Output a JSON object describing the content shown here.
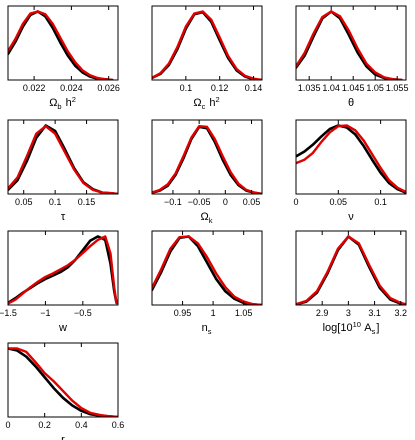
{
  "chart_data": [
    {
      "type": "line",
      "xlabel": "Ω_b h^2",
      "xlim": [
        0.0206,
        0.0265
      ],
      "ylim": [
        0,
        1.08
      ],
      "xticks": [
        "0.022",
        "0.024",
        "0.026"
      ],
      "series": [
        {
          "color": "#000000",
          "x": [
            0.0206,
            0.021,
            0.0214,
            0.0218,
            0.0222,
            0.0226,
            0.023,
            0.0234,
            0.0238,
            0.0242,
            0.0246,
            0.025,
            0.0254,
            0.0258,
            0.0262
          ],
          "y": [
            0.38,
            0.56,
            0.78,
            0.95,
            1.0,
            0.93,
            0.76,
            0.55,
            0.36,
            0.21,
            0.11,
            0.05,
            0.02,
            0.01,
            0.0
          ]
        },
        {
          "color": "#e00000",
          "x": [
            0.0206,
            0.021,
            0.0214,
            0.0218,
            0.0222,
            0.0226,
            0.023,
            0.0234,
            0.0238,
            0.0242,
            0.0246,
            0.025,
            0.0254,
            0.0258,
            0.0262
          ],
          "y": [
            0.42,
            0.6,
            0.82,
            0.97,
            1.0,
            0.96,
            0.82,
            0.62,
            0.42,
            0.26,
            0.14,
            0.07,
            0.03,
            0.01,
            0.0
          ]
        }
      ]
    },
    {
      "type": "line",
      "xlabel": "Ω_c h^2",
      "xlim": [
        0.08,
        0.145
      ],
      "ylim": [
        0,
        1.08
      ],
      "xticks": [
        "0.1",
        "0.12",
        "0.14"
      ],
      "series": [
        {
          "color": "#000000",
          "x": [
            0.08,
            0.085,
            0.09,
            0.095,
            0.1,
            0.105,
            0.11,
            0.115,
            0.12,
            0.125,
            0.13,
            0.135,
            0.14,
            0.145
          ],
          "y": [
            0.03,
            0.09,
            0.22,
            0.45,
            0.75,
            0.96,
            0.99,
            0.85,
            0.58,
            0.32,
            0.14,
            0.05,
            0.01,
            0.0
          ]
        },
        {
          "color": "#e00000",
          "x": [
            0.08,
            0.085,
            0.09,
            0.095,
            0.1,
            0.105,
            0.11,
            0.115,
            0.12,
            0.125,
            0.13,
            0.135,
            0.14,
            0.145
          ],
          "y": [
            0.03,
            0.1,
            0.24,
            0.48,
            0.78,
            0.97,
            1.0,
            0.88,
            0.62,
            0.35,
            0.16,
            0.06,
            0.02,
            0.0
          ]
        }
      ]
    },
    {
      "type": "line",
      "xlabel": "θ",
      "xlim": [
        1.032,
        1.057
      ],
      "ylim": [
        0,
        1.08
      ],
      "xticks": [
        "1.035",
        "1.04",
        "1.045",
        "1.05",
        "1.055"
      ],
      "series": [
        {
          "color": "#000000",
          "x": [
            1.032,
            1.034,
            1.036,
            1.038,
            1.04,
            1.042,
            1.044,
            1.046,
            1.048,
            1.05,
            1.052,
            1.054,
            1.056
          ],
          "y": [
            0.18,
            0.36,
            0.64,
            0.9,
            1.0,
            0.9,
            0.66,
            0.4,
            0.2,
            0.08,
            0.03,
            0.01,
            0.0
          ]
        },
        {
          "color": "#e00000",
          "x": [
            1.032,
            1.034,
            1.036,
            1.038,
            1.04,
            1.042,
            1.044,
            1.046,
            1.048,
            1.05,
            1.052,
            1.054,
            1.056
          ],
          "y": [
            0.2,
            0.4,
            0.68,
            0.92,
            1.0,
            0.93,
            0.72,
            0.46,
            0.24,
            0.11,
            0.04,
            0.01,
            0.0
          ]
        }
      ]
    },
    {
      "type": "line",
      "xlabel": "τ",
      "xlim": [
        0.025,
        0.2
      ],
      "ylim": [
        0,
        1.08
      ],
      "xticks": [
        "0.05",
        "0.1",
        "0.15"
      ],
      "series": [
        {
          "color": "#000000",
          "x": [
            0.025,
            0.04,
            0.055,
            0.07,
            0.085,
            0.1,
            0.115,
            0.13,
            0.145,
            0.16,
            0.175,
            0.19,
            0.2
          ],
          "y": [
            0.06,
            0.2,
            0.48,
            0.82,
            1.0,
            0.92,
            0.66,
            0.38,
            0.17,
            0.07,
            0.02,
            0.01,
            0.0
          ]
        },
        {
          "color": "#e00000",
          "x": [
            0.025,
            0.04,
            0.055,
            0.07,
            0.085,
            0.1,
            0.115,
            0.13,
            0.145,
            0.16,
            0.175,
            0.19,
            0.2
          ],
          "y": [
            0.08,
            0.24,
            0.55,
            0.88,
            0.99,
            0.88,
            0.62,
            0.36,
            0.16,
            0.06,
            0.02,
            0.01,
            0.0
          ]
        }
      ]
    },
    {
      "type": "line",
      "xlabel": "Ω_k",
      "xlim": [
        -0.14,
        0.07
      ],
      "ylim": [
        0,
        1.08
      ],
      "xticks": [
        "−0.1",
        "−0.05",
        "0",
        "0.05"
      ],
      "series": [
        {
          "color": "#000000",
          "x": [
            -0.14,
            -0.125,
            -0.11,
            -0.095,
            -0.08,
            -0.065,
            -0.05,
            -0.035,
            -0.02,
            -0.005,
            0.01,
            0.025,
            0.04,
            0.055,
            0.07
          ],
          "y": [
            0.02,
            0.05,
            0.12,
            0.28,
            0.52,
            0.8,
            0.98,
            0.96,
            0.76,
            0.5,
            0.28,
            0.13,
            0.05,
            0.02,
            0.0
          ]
        },
        {
          "color": "#e00000",
          "x": [
            -0.14,
            -0.125,
            -0.11,
            -0.095,
            -0.08,
            -0.065,
            -0.05,
            -0.035,
            -0.02,
            -0.005,
            0.01,
            0.025,
            0.04,
            0.055,
            0.07
          ],
          "y": [
            0.02,
            0.06,
            0.14,
            0.3,
            0.55,
            0.82,
            0.99,
            0.98,
            0.8,
            0.55,
            0.32,
            0.15,
            0.06,
            0.02,
            0.0
          ]
        }
      ]
    },
    {
      "type": "line",
      "xlabel": "ν",
      "xlim": [
        0,
        0.13
      ],
      "ylim": [
        0,
        1.08
      ],
      "xticks": [
        "0",
        "0.05",
        "0.1"
      ],
      "series": [
        {
          "color": "#000000",
          "x": [
            0,
            0.01,
            0.02,
            0.03,
            0.04,
            0.05,
            0.06,
            0.07,
            0.08,
            0.09,
            0.1,
            0.11,
            0.12,
            0.13
          ],
          "y": [
            0.55,
            0.62,
            0.72,
            0.84,
            0.95,
            1.0,
            0.97,
            0.87,
            0.7,
            0.5,
            0.31,
            0.16,
            0.07,
            0.02
          ]
        },
        {
          "color": "#e00000",
          "x": [
            0,
            0.01,
            0.02,
            0.03,
            0.04,
            0.05,
            0.06,
            0.07,
            0.08,
            0.09,
            0.1,
            0.11,
            0.12,
            0.13
          ],
          "y": [
            0.45,
            0.5,
            0.6,
            0.76,
            0.9,
            0.99,
            1.0,
            0.93,
            0.78,
            0.58,
            0.38,
            0.2,
            0.09,
            0.03
          ]
        }
      ]
    },
    {
      "type": "line",
      "xlabel": "w",
      "xlim": [
        -1.5,
        -0.03
      ],
      "ylim": [
        0,
        1.08
      ],
      "xticks": [
        "−1.5",
        "−1",
        "−0.5"
      ],
      "series": [
        {
          "color": "#000000",
          "x": [
            -1.5,
            -1.4,
            -1.3,
            -1.2,
            -1.1,
            -1.0,
            -0.9,
            -0.8,
            -0.7,
            -0.6,
            -0.5,
            -0.4,
            -0.3,
            -0.2,
            -0.13,
            -0.08,
            -0.05
          ],
          "y": [
            0.03,
            0.1,
            0.18,
            0.25,
            0.32,
            0.38,
            0.43,
            0.48,
            0.55,
            0.66,
            0.8,
            0.94,
            1.0,
            0.95,
            0.6,
            0.2,
            0.03
          ]
        },
        {
          "color": "#e00000",
          "x": [
            -1.5,
            -1.4,
            -1.3,
            -1.2,
            -1.1,
            -1.0,
            -0.9,
            -0.8,
            -0.7,
            -0.6,
            -0.5,
            -0.4,
            -0.3,
            -0.2,
            -0.13,
            -0.08,
            -0.05
          ],
          "y": [
            0.02,
            0.08,
            0.17,
            0.26,
            0.34,
            0.41,
            0.46,
            0.52,
            0.58,
            0.66,
            0.76,
            0.86,
            0.95,
            1.0,
            0.75,
            0.25,
            0.03
          ]
        }
      ]
    },
    {
      "type": "line",
      "xlabel": "n_s",
      "xlim": [
        0.9,
        1.08
      ],
      "ylim": [
        0,
        1.08
      ],
      "xticks": [
        "0.95",
        "1",
        "1.05"
      ],
      "series": [
        {
          "color": "#000000",
          "x": [
            0.9,
            0.915,
            0.93,
            0.945,
            0.96,
            0.975,
            0.99,
            1.005,
            1.02,
            1.035,
            1.05,
            1.065,
            1.08
          ],
          "y": [
            0.22,
            0.48,
            0.78,
            0.98,
            1.0,
            0.86,
            0.62,
            0.38,
            0.2,
            0.09,
            0.03,
            0.01,
            0.0
          ]
        },
        {
          "color": "#e00000",
          "x": [
            0.9,
            0.915,
            0.93,
            0.945,
            0.96,
            0.975,
            0.99,
            1.005,
            1.02,
            1.035,
            1.05,
            1.065,
            1.08
          ],
          "y": [
            0.25,
            0.52,
            0.82,
            0.99,
            1.0,
            0.9,
            0.7,
            0.46,
            0.26,
            0.12,
            0.05,
            0.01,
            0.0
          ]
        }
      ]
    },
    {
      "type": "line",
      "xlabel": "log[10^10 A_s]",
      "xlim": [
        2.8,
        3.22
      ],
      "ylim": [
        0,
        1.08
      ],
      "xticks": [
        "2.9",
        "3",
        "3.1",
        "3.2"
      ],
      "series": [
        {
          "color": "#000000",
          "x": [
            2.8,
            2.84,
            2.88,
            2.92,
            2.96,
            3.0,
            3.04,
            3.08,
            3.12,
            3.16,
            3.2,
            3.22
          ],
          "y": [
            0.01,
            0.05,
            0.18,
            0.46,
            0.8,
            1.0,
            0.88,
            0.55,
            0.25,
            0.08,
            0.02,
            0.01
          ]
        },
        {
          "color": "#e00000",
          "x": [
            2.8,
            2.84,
            2.88,
            2.92,
            2.96,
            3.0,
            3.04,
            3.08,
            3.12,
            3.16,
            3.2,
            3.22
          ],
          "y": [
            0.01,
            0.06,
            0.2,
            0.48,
            0.82,
            1.0,
            0.9,
            0.58,
            0.28,
            0.1,
            0.03,
            0.01
          ]
        }
      ]
    },
    {
      "type": "line",
      "xlabel": "r",
      "xlim": [
        0,
        0.6
      ],
      "ylim": [
        0,
        1.08
      ],
      "xticks": [
        "0",
        "0.2",
        "0.4",
        "0.6"
      ],
      "series": [
        {
          "color": "#000000",
          "x": [
            0,
            0.05,
            0.1,
            0.15,
            0.2,
            0.25,
            0.3,
            0.35,
            0.4,
            0.45,
            0.5,
            0.55,
            0.6
          ],
          "y": [
            1.0,
            0.97,
            0.88,
            0.74,
            0.58,
            0.42,
            0.28,
            0.17,
            0.09,
            0.04,
            0.02,
            0.01,
            0.0
          ]
        },
        {
          "color": "#e00000",
          "x": [
            0,
            0.05,
            0.1,
            0.15,
            0.2,
            0.25,
            0.3,
            0.35,
            0.4,
            0.45,
            0.5,
            0.55,
            0.6
          ],
          "y": [
            1.0,
            1.0,
            0.95,
            0.8,
            0.64,
            0.52,
            0.38,
            0.24,
            0.13,
            0.06,
            0.03,
            0.01,
            0.0
          ]
        }
      ]
    }
  ]
}
